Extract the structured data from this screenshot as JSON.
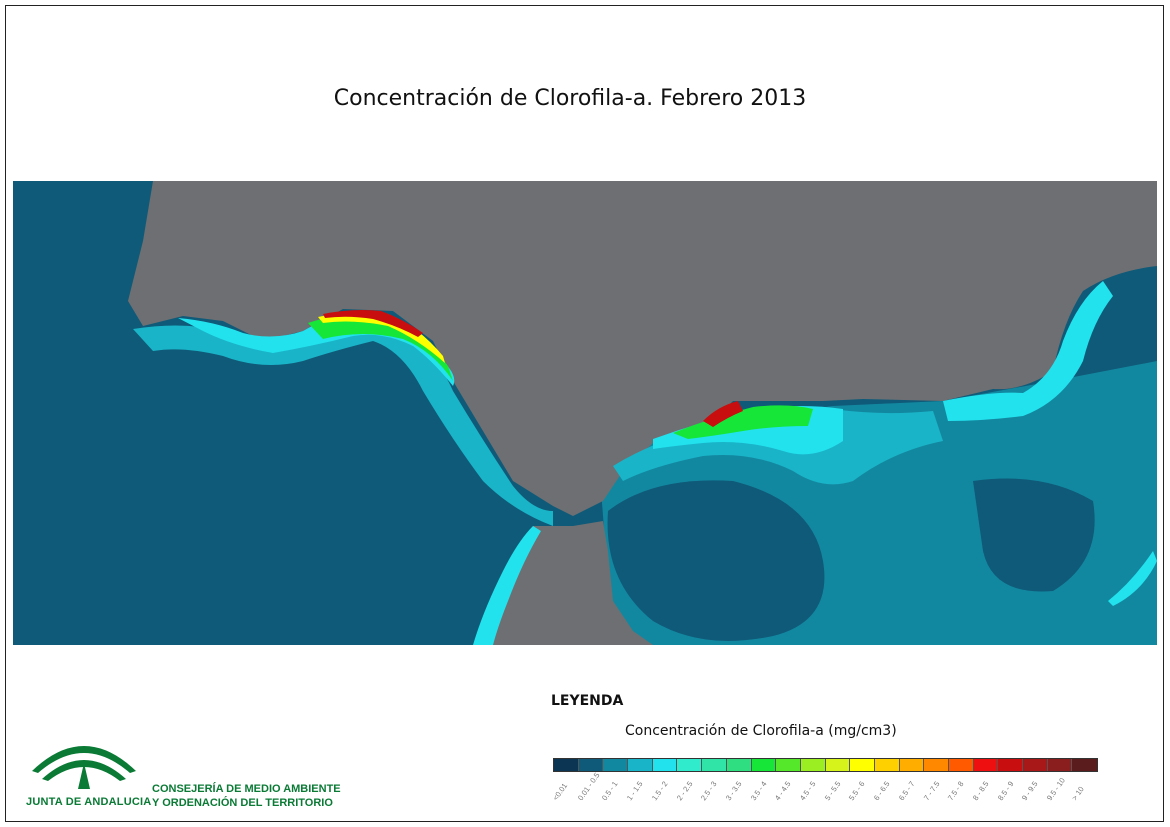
{
  "title": "Concentración de Clorofila-a. Febrero 2013",
  "legend": {
    "heading": "LEYENDA",
    "subtitle": "Concentración de Clorofila-a (mg/cm3)",
    "classes": [
      {
        "label": "<0.01",
        "color": "#0b3552"
      },
      {
        "label": "0.01 - 0.5",
        "color": "#0f5a78"
      },
      {
        "label": "0.5 - 1",
        "color": "#1288a0"
      },
      {
        "label": "1 - 1.5",
        "color": "#19b4c8"
      },
      {
        "label": "1.5 - 2",
        "color": "#22e2ee"
      },
      {
        "label": "2 - 2.5",
        "color": "#31eccc"
      },
      {
        "label": "2.5 - 3",
        "color": "#30e3a6"
      },
      {
        "label": "3 - 3.5",
        "color": "#2ede80"
      },
      {
        "label": "3.5 - 4",
        "color": "#15e638"
      },
      {
        "label": "4 - 4.5",
        "color": "#55e82a"
      },
      {
        "label": "4.5 - 5",
        "color": "#9bee22"
      },
      {
        "label": "5 - 5.5",
        "color": "#d6f31c"
      },
      {
        "label": "5.5 - 6",
        "color": "#ffff00"
      },
      {
        "label": "6 - 6.5",
        "color": "#ffd000"
      },
      {
        "label": "6.5 - 7",
        "color": "#ffae00"
      },
      {
        "label": "7 - 7.5",
        "color": "#ff8800"
      },
      {
        "label": "7.5 - 8",
        "color": "#ff5a00"
      },
      {
        "label": "8 - 8.5",
        "color": "#ee1010"
      },
      {
        "label": "8.5 - 9",
        "color": "#c80e0e"
      },
      {
        "label": "9 - 9.5",
        "color": "#a81818"
      },
      {
        "label": "9.5 - 10",
        "color": "#8a1e1e"
      },
      {
        "label": "> 10",
        "color": "#5a1c1c"
      }
    ]
  },
  "logo": {
    "name": "JUNTA DE ANDALUCIA",
    "org_line1": "CONSEJERÍA DE MEDIO AMBIENTE",
    "org_line2": "Y ORDENACIÓN DEL TERRITORIO",
    "color": "#0a7a35"
  },
  "map_colors": {
    "land": "#6e6f72",
    "ocean_deep": "#0f5a78",
    "ocean_mid": "#1288a0",
    "coastal": "#19b4c8",
    "bloom_low": "#22e2ee",
    "bloom_mid": "#15e638",
    "bloom_high": "#ffff00",
    "bloom_max": "#c80e0e"
  }
}
